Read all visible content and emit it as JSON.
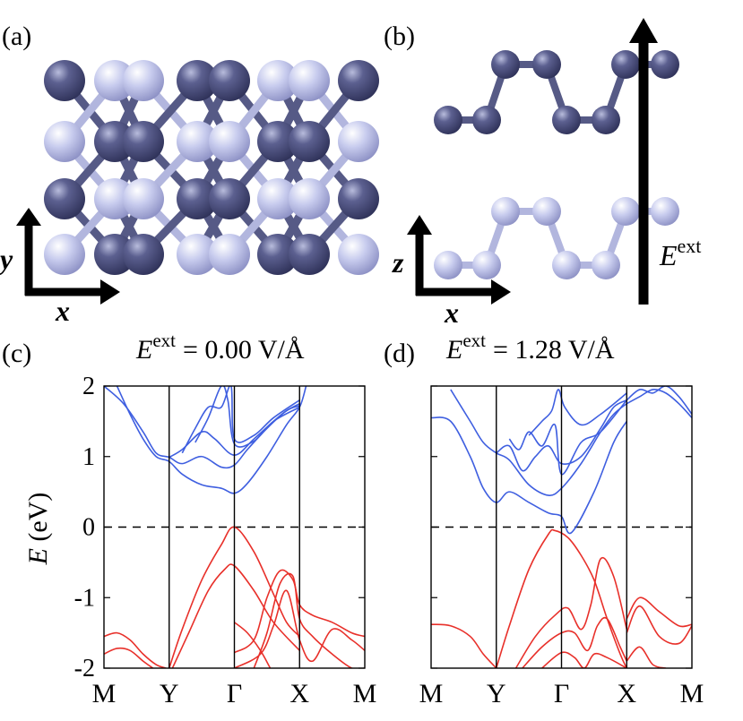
{
  "panels": {
    "a": {
      "label": "(a)",
      "axis_vertical": "y",
      "axis_horizontal": "x"
    },
    "b": {
      "label": "(b)",
      "axis_vertical": "z",
      "axis_horizontal": "x",
      "field_symbol": "E",
      "field_superscript": "ext"
    },
    "c": {
      "label": "(c)",
      "title_symbol": "E",
      "title_superscript": "ext",
      "title_value": "= 0.00 V/Å"
    },
    "d": {
      "label": "(d)",
      "title_symbol": "E",
      "title_superscript": "ext",
      "title_value": "= 1.28 V/Å"
    }
  },
  "colors": {
    "atom_dark": "#4a4e78",
    "atom_light": "#c4c8ec",
    "bond_dark": "#565a86",
    "bond_light": "#b2b6de",
    "conduction_band": "#3f5fe0",
    "valence_band": "#e8302a",
    "fermi_line": "#000000"
  },
  "chart_data": [
    {
      "type": "line",
      "panel": "c",
      "ylabel_symbol": "E",
      "ylabel_unit": "(eV)",
      "ylim": [
        -2,
        2
      ],
      "yticks": [
        "2",
        "1",
        "0",
        "-1",
        "-2"
      ],
      "ytick_values": [
        2,
        1,
        0,
        -1,
        -2
      ],
      "xtick_labels": [
        "M",
        "Y",
        "Γ",
        "X",
        "M"
      ],
      "xtick_positions": [
        0,
        1,
        2,
        3,
        4
      ],
      "fermi_level": 0,
      "series": [
        {
          "band": "conduction",
          "x": [
            0.2,
            0.4,
            0.6,
            0.8,
            1.0,
            1.2,
            1.5,
            1.8,
            2.0,
            2.2,
            2.5,
            2.8,
            3.0,
            3.1
          ],
          "y": [
            2.0,
            1.6,
            1.25,
            1.0,
            0.93,
            0.75,
            0.6,
            0.55,
            0.48,
            0.62,
            1.0,
            1.45,
            1.7,
            2.0
          ]
        },
        {
          "band": "conduction",
          "x": [
            0.0,
            0.3,
            0.6,
            0.8,
            1.0,
            1.2,
            1.5,
            1.8,
            2.0,
            2.2,
            2.5,
            2.8,
            3.0
          ],
          "y": [
            2.0,
            1.75,
            1.35,
            1.05,
            0.99,
            0.9,
            1.0,
            0.85,
            0.88,
            1.1,
            1.4,
            1.65,
            1.72
          ]
        },
        {
          "band": "conduction",
          "x": [
            1.0,
            1.2,
            1.5,
            1.7,
            2.0,
            2.3,
            2.6,
            2.8,
            3.0
          ],
          "y": [
            0.99,
            1.1,
            1.35,
            1.25,
            1.02,
            1.25,
            1.5,
            1.65,
            1.75
          ]
        },
        {
          "band": "conduction",
          "x": [
            1.2,
            1.4,
            1.6,
            1.8,
            1.95,
            2.0,
            2.3,
            2.6,
            3.0
          ],
          "y": [
            1.05,
            1.4,
            1.7,
            1.7,
            2.0,
            1.25,
            1.3,
            1.55,
            1.8
          ]
        },
        {
          "band": "conduction",
          "x": [
            1.4,
            1.6,
            1.8,
            1.9,
            2.0,
            2.3,
            2.6,
            3.0
          ],
          "y": [
            1.2,
            1.55,
            2.0,
            1.8,
            1.18,
            1.22,
            1.5,
            1.7
          ]
        },
        {
          "band": "valence",
          "x": [
            1.0,
            1.2,
            1.5,
            1.8,
            2.0,
            2.3,
            2.6,
            2.8,
            3.0
          ],
          "y": [
            -2.0,
            -1.45,
            -0.75,
            -0.25,
            0.0,
            -0.35,
            -0.95,
            -1.35,
            -1.55
          ]
        },
        {
          "band": "valence",
          "x": [
            1.05,
            1.3,
            1.6,
            1.85,
            2.0,
            2.3,
            2.6,
            3.0
          ],
          "y": [
            -2.0,
            -1.5,
            -0.9,
            -0.6,
            -0.55,
            -0.9,
            -1.35,
            -1.75
          ]
        },
        {
          "band": "valence",
          "x": [
            2.0,
            2.3,
            2.5,
            2.7,
            2.9,
            3.0,
            3.2,
            3.5,
            3.8,
            4.0
          ],
          "y": [
            -1.78,
            -1.6,
            -1.0,
            -0.62,
            -0.75,
            -1.1,
            -1.25,
            -1.35,
            -1.5,
            -1.55
          ]
        },
        {
          "band": "valence",
          "x": [
            2.0,
            2.4,
            2.6,
            2.8,
            3.0,
            3.2,
            3.5,
            3.8,
            4.0
          ],
          "y": [
            -2.0,
            -1.8,
            -1.4,
            -0.9,
            -1.6,
            -1.9,
            -1.45,
            -1.6,
            -1.75
          ]
        },
        {
          "band": "valence",
          "x": [
            2.3,
            2.5,
            2.7,
            2.9,
            3.0,
            3.2,
            3.5,
            3.8,
            4.0
          ],
          "y": [
            -2.0,
            -1.5,
            -0.8,
            -0.7,
            -1.3,
            -1.55,
            -1.8,
            -2.0,
            -2.0
          ]
        },
        {
          "band": "valence",
          "x": [
            0.0,
            0.2,
            0.4,
            0.6,
            0.8,
            0.95
          ],
          "y": [
            -1.55,
            -1.5,
            -1.6,
            -1.8,
            -1.95,
            -2.0
          ]
        },
        {
          "band": "valence",
          "x": [
            0.0,
            0.2,
            0.4,
            0.6,
            0.75
          ],
          "y": [
            -1.8,
            -1.72,
            -1.75,
            -1.9,
            -2.0
          ]
        },
        {
          "band": "valence",
          "x": [
            2.0,
            2.2,
            2.4,
            2.55
          ],
          "y": [
            -1.35,
            -1.5,
            -1.75,
            -2.0
          ]
        }
      ]
    },
    {
      "type": "line",
      "panel": "d",
      "ylim": [
        -2,
        2
      ],
      "yticks": [
        "2",
        "1",
        "0",
        "-1",
        "-2"
      ],
      "ytick_values": [
        2,
        1,
        0,
        -1,
        -2
      ],
      "xtick_labels": [
        "M",
        "Y",
        "Γ",
        "X",
        "M"
      ],
      "xtick_positions": [
        0,
        1,
        2,
        3,
        4
      ],
      "fermi_level": 0,
      "series": [
        {
          "band": "conduction",
          "x": [
            0.0,
            0.3,
            0.6,
            0.8,
            1.0,
            1.2,
            1.5,
            1.8,
            2.0,
            2.15,
            2.5,
            2.8,
            3.0
          ],
          "y": [
            1.55,
            1.5,
            1.0,
            0.55,
            0.35,
            0.5,
            0.35,
            0.2,
            0.15,
            -0.08,
            0.5,
            1.2,
            1.5
          ]
        },
        {
          "band": "conduction",
          "x": [
            0.3,
            0.6,
            0.8,
            1.0,
            1.2,
            1.5,
            1.8,
            2.0,
            2.3,
            2.6,
            2.8,
            3.0
          ],
          "y": [
            1.95,
            1.5,
            1.2,
            1.05,
            0.95,
            0.6,
            0.45,
            0.55,
            0.9,
            1.35,
            1.6,
            1.75
          ]
        },
        {
          "band": "conduction",
          "x": [
            1.0,
            1.2,
            1.4,
            1.6,
            1.8,
            2.0,
            2.3,
            2.6,
            2.8,
            3.0
          ],
          "y": [
            1.05,
            1.15,
            0.8,
            1.0,
            1.15,
            0.9,
            1.0,
            1.4,
            1.7,
            1.8
          ]
        },
        {
          "band": "conduction",
          "x": [
            1.2,
            1.35,
            1.5,
            1.7,
            1.9,
            2.0,
            2.3,
            2.6,
            3.0
          ],
          "y": [
            1.25,
            1.1,
            1.35,
            1.15,
            1.45,
            0.75,
            1.2,
            1.35,
            1.8
          ]
        },
        {
          "band": "conduction",
          "x": [
            1.5,
            1.7,
            1.85,
            1.95,
            2.05,
            2.3,
            2.6,
            3.0
          ],
          "y": [
            1.3,
            1.5,
            1.65,
            1.95,
            1.7,
            1.45,
            1.6,
            1.9
          ]
        },
        {
          "band": "conduction",
          "x": [
            3.0,
            3.2,
            3.4,
            3.6,
            3.8,
            4.0
          ],
          "y": [
            1.8,
            1.95,
            1.9,
            2.0,
            1.85,
            1.6
          ]
        },
        {
          "band": "conduction",
          "x": [
            3.0,
            3.2,
            3.4,
            3.6,
            3.8,
            4.0
          ],
          "y": [
            1.75,
            1.85,
            1.95,
            1.9,
            1.75,
            1.55
          ]
        },
        {
          "band": "valence",
          "x": [
            1.0,
            1.2,
            1.5,
            1.8,
            1.9,
            2.1,
            2.3,
            2.5,
            2.7,
            2.9,
            3.0
          ],
          "y": [
            -2.0,
            -1.4,
            -0.6,
            -0.1,
            -0.05,
            -0.15,
            -0.4,
            -0.75,
            -1.3,
            -1.8,
            -2.0
          ]
        },
        {
          "band": "valence",
          "x": [
            0.0,
            0.3,
            0.6,
            0.8,
            1.0
          ],
          "y": [
            -1.38,
            -1.4,
            -1.55,
            -1.8,
            -2.0
          ]
        },
        {
          "band": "valence",
          "x": [
            1.3,
            1.6,
            1.9,
            2.1,
            2.3,
            2.45,
            2.6,
            2.8,
            3.0
          ],
          "y": [
            -2.0,
            -1.55,
            -1.25,
            -1.15,
            -1.45,
            -1.1,
            -0.45,
            -0.7,
            -1.45
          ]
        },
        {
          "band": "valence",
          "x": [
            1.4,
            1.7,
            2.0,
            2.2,
            2.4,
            2.55,
            2.7,
            2.9,
            3.0
          ],
          "y": [
            -2.0,
            -1.7,
            -1.5,
            -1.5,
            -1.75,
            -1.4,
            -1.3,
            -1.7,
            -1.9
          ]
        },
        {
          "band": "valence",
          "x": [
            1.7,
            2.0,
            2.2,
            2.35,
            2.5,
            2.7,
            3.0
          ],
          "y": [
            -2.0,
            -1.78,
            -1.85,
            -2.0,
            -1.8,
            -1.85,
            -2.0
          ]
        },
        {
          "band": "valence",
          "x": [
            3.0,
            3.2,
            3.5,
            3.8,
            4.0
          ],
          "y": [
            -1.3,
            -1.0,
            -1.2,
            -1.4,
            -1.38
          ]
        },
        {
          "band": "valence",
          "x": [
            3.0,
            3.2,
            3.5,
            3.8,
            4.0
          ],
          "y": [
            -1.5,
            -1.12,
            -1.55,
            -1.65,
            -1.4
          ]
        },
        {
          "band": "valence",
          "x": [
            3.0,
            3.2,
            3.4,
            3.6
          ],
          "y": [
            -1.9,
            -1.7,
            -1.95,
            -2.0
          ]
        }
      ]
    }
  ]
}
